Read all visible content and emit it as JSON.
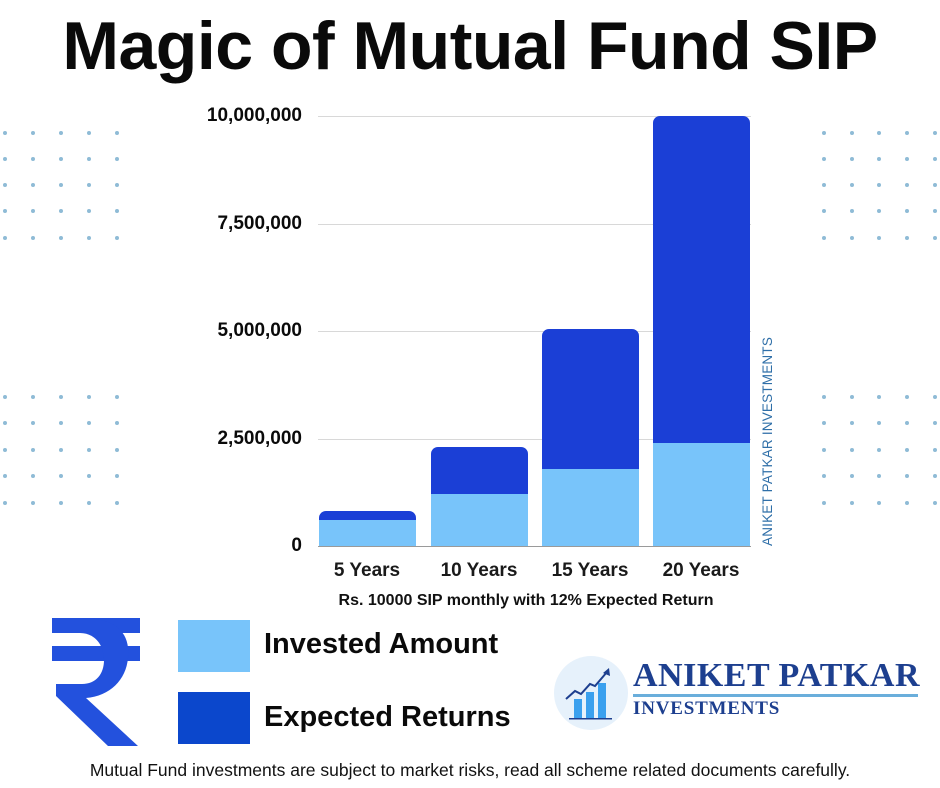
{
  "title": "Magic of Mutual Fund SIP",
  "chart_data": {
    "type": "bar",
    "stacked": true,
    "title": "Magic of Mutual Fund SIP",
    "subtitle": "Rs. 10000 SIP monthly with 12% Expected Return",
    "xlabel": "",
    "ylabel": "",
    "categories": [
      "5 Years",
      "10 Years",
      "15 Years",
      "20 Years"
    ],
    "series": [
      {
        "name": "Invested Amount",
        "color": "#78c4fa",
        "values": [
          600000,
          1200000,
          1800000,
          2400000
        ]
      },
      {
        "name": "Expected Returns",
        "color": "#1b3fd6",
        "values": [
          220000,
          1100000,
          3240000,
          7590000
        ]
      }
    ],
    "totals": [
      820000,
      2300000,
      5040000,
      9990000
    ],
    "y_ticks": [
      "0",
      "2,500,000",
      "5,000,000",
      "7,500,000",
      "10,000,000"
    ],
    "ylim": [
      0,
      10000000
    ],
    "grid": true,
    "legend_position": "bottom-left"
  },
  "chart": {
    "subtitle": "Rs. 10000 SIP monthly with 12% Expected Return",
    "watermark": "ANIKET PATKAR INVESTMENTS"
  },
  "legend": {
    "items": [
      {
        "label": "Invested Amount",
        "color": "#78c4fa"
      },
      {
        "label": "Expected Returns",
        "color": "#0b47cc"
      }
    ]
  },
  "brand": {
    "name": "ANIKET PATKAR",
    "sub": "INVESTMENTS",
    "color": "#1d3f8f",
    "icon": "rising-chart-icon"
  },
  "icons": {
    "currency": "rupee-icon"
  },
  "disclaimer": "Mutual Fund investments are subject to market risks, read all scheme related documents carefully."
}
